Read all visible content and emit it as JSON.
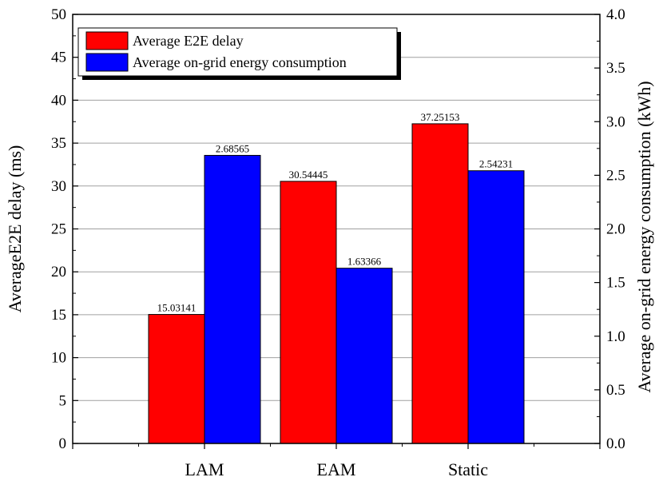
{
  "chart_data": {
    "type": "bar",
    "categories": [
      "LAM",
      "EAM",
      "Static"
    ],
    "series": [
      {
        "name": "Average E2E delay",
        "axis": "left",
        "color": "#ff0000",
        "values": [
          15.03141,
          30.54445,
          37.25153
        ],
        "labels": [
          "15.03141",
          "30.54445",
          "37.25153"
        ]
      },
      {
        "name": "Average on-grid energy consumption",
        "axis": "right",
        "color": "#0000ff",
        "values": [
          2.68565,
          1.63366,
          2.54231
        ],
        "labels": [
          "2.68565",
          "1.63366",
          "2.54231"
        ]
      }
    ],
    "ylabel": "AverageE2E delay (ms)",
    "y2label": "Average on-grid energy consumption (kWh)",
    "ylim": [
      0,
      50
    ],
    "y2lim": [
      0,
      4.0
    ],
    "yticks": [
      "0",
      "5",
      "10",
      "15",
      "20",
      "25",
      "30",
      "35",
      "40",
      "45",
      "50"
    ],
    "y2ticks": [
      "0.0",
      "0.5",
      "1.0",
      "1.5",
      "2.0",
      "2.5",
      "3.0",
      "3.5",
      "4.0"
    ],
    "grid": true,
    "legend_position": "top-left"
  }
}
